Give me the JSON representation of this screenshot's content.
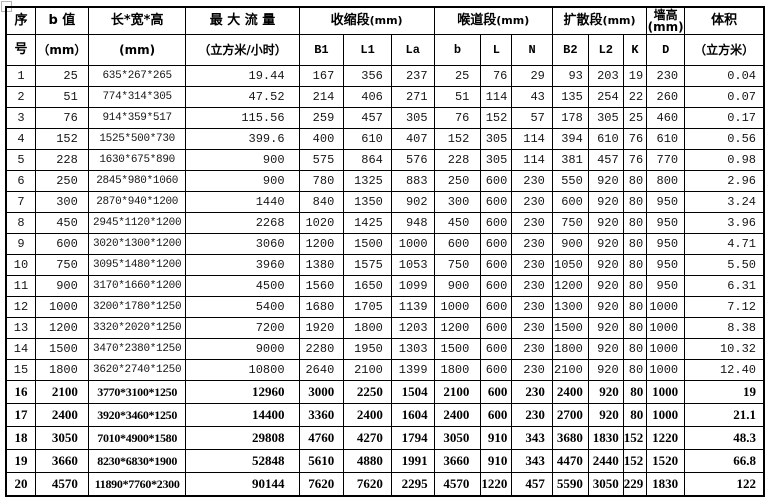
{
  "header": {
    "row1": {
      "serial_top": "序",
      "b_value": "b 值",
      "dimensions": "长*宽*高",
      "max_flow": "最 大 流 量",
      "contraction": "收缩段",
      "contraction_unit": "(mm)",
      "throat": "喉道段",
      "throat_unit": "(mm)",
      "diffusion": "扩散段",
      "diffusion_unit": "(mm)",
      "wall_height": "墙高",
      "wall_height_unit": "(mm)",
      "volume": "体积"
    },
    "row2": {
      "serial_bottom": "号",
      "b_value_unit": "（mm）",
      "dimensions_unit": "(mm)",
      "max_flow_unit": "（立方米/小时）",
      "cols": [
        "B1",
        "L1",
        "La",
        "b",
        "L",
        "N",
        "B2",
        "L2",
        "K",
        "D"
      ],
      "volume_unit": "（立方米）"
    }
  },
  "rows": [
    {
      "bold": false,
      "cells": [
        "1",
        "25",
        "635*267*265",
        "19.44",
        "167",
        "356",
        "237",
        "25",
        "76",
        "29",
        "93",
        "203",
        "19",
        "230",
        "0.04"
      ]
    },
    {
      "bold": false,
      "cells": [
        "2",
        "51",
        "774*314*305",
        "47.52",
        "214",
        "406",
        "271",
        "51",
        "114",
        "43",
        "135",
        "254",
        "22",
        "260",
        "0.07"
      ]
    },
    {
      "bold": false,
      "cells": [
        "3",
        "76",
        "914*359*517",
        "115.56",
        "259",
        "457",
        "305",
        "76",
        "152",
        "57",
        "178",
        "305",
        "25",
        "460",
        "0.17"
      ]
    },
    {
      "bold": false,
      "cells": [
        "4",
        "152",
        "1525*500*730",
        "399.6",
        "400",
        "610",
        "407",
        "152",
        "305",
        "114",
        "394",
        "610",
        "76",
        "610",
        "0.56"
      ]
    },
    {
      "bold": false,
      "cells": [
        "5",
        "228",
        "1630*675*890",
        "900",
        "575",
        "864",
        "576",
        "228",
        "305",
        "114",
        "381",
        "457",
        "76",
        "770",
        "0.98"
      ]
    },
    {
      "bold": false,
      "cells": [
        "6",
        "250",
        "2845*980*1060",
        "900",
        "780",
        "1325",
        "883",
        "250",
        "600",
        "230",
        "550",
        "920",
        "80",
        "800",
        "2.96"
      ]
    },
    {
      "bold": false,
      "cells": [
        "7",
        "300",
        "2870*940*1200",
        "1440",
        "840",
        "1350",
        "902",
        "300",
        "600",
        "230",
        "600",
        "920",
        "80",
        "950",
        "3.24"
      ]
    },
    {
      "bold": false,
      "cells": [
        "8",
        "450",
        "2945*1120*1200",
        "2268",
        "1020",
        "1425",
        "948",
        "450",
        "600",
        "230",
        "750",
        "920",
        "80",
        "950",
        "3.96"
      ]
    },
    {
      "bold": false,
      "cells": [
        "9",
        "600",
        "3020*1300*1200",
        "3060",
        "1200",
        "1500",
        "1000",
        "600",
        "600",
        "230",
        "900",
        "920",
        "80",
        "950",
        "4.71"
      ]
    },
    {
      "bold": false,
      "cells": [
        "10",
        "750",
        "3095*1480*1200",
        "3960",
        "1380",
        "1575",
        "1053",
        "750",
        "600",
        "230",
        "1050",
        "920",
        "80",
        "950",
        "5.50"
      ]
    },
    {
      "bold": false,
      "cells": [
        "11",
        "900",
        "3170*1660*1200",
        "4500",
        "1560",
        "1650",
        "1099",
        "900",
        "600",
        "230",
        "1200",
        "920",
        "80",
        "950",
        "6.31"
      ]
    },
    {
      "bold": false,
      "cells": [
        "12",
        "1000",
        "3200*1780*1250",
        "5400",
        "1680",
        "1705",
        "1139",
        "1000",
        "600",
        "230",
        "1300",
        "920",
        "80",
        "1000",
        "7.12"
      ]
    },
    {
      "bold": false,
      "cells": [
        "13",
        "1200",
        "3320*2020*1250",
        "7200",
        "1920",
        "1800",
        "1203",
        "1200",
        "600",
        "230",
        "1500",
        "920",
        "80",
        "1000",
        "8.38"
      ]
    },
    {
      "bold": false,
      "cells": [
        "14",
        "1500",
        "3470*2380*1250",
        "9000",
        "2280",
        "1950",
        "1303",
        "1500",
        "600",
        "230",
        "1800",
        "920",
        "80",
        "1000",
        "10.32"
      ]
    },
    {
      "bold": false,
      "cells": [
        "15",
        "1800",
        "3620*2740*1250",
        "10800",
        "2640",
        "2100",
        "1399",
        "1800",
        "600",
        "230",
        "2100",
        "920",
        "80",
        "1000",
        "12.40"
      ]
    },
    {
      "bold": true,
      "cells": [
        "16",
        "2100",
        "3770*3100*1250",
        "12960",
        "3000",
        "2250",
        "1504",
        "2100",
        "600",
        "230",
        "2400",
        "920",
        "80",
        "1000",
        "19"
      ]
    },
    {
      "bold": true,
      "cells": [
        "17",
        "2400",
        "3920*3460*1250",
        "14400",
        "3360",
        "2400",
        "1604",
        "2400",
        "600",
        "230",
        "2700",
        "920",
        "80",
        "1000",
        "21.1"
      ]
    },
    {
      "bold": true,
      "cells": [
        "18",
        "3050",
        "7010*4900*1580",
        "29808",
        "4760",
        "4270",
        "1794",
        "3050",
        "910",
        "343",
        "3680",
        "1830",
        "152",
        "1220",
        "48.3"
      ]
    },
    {
      "bold": true,
      "cells": [
        "19",
        "3660",
        "8230*6830*1900",
        "52848",
        "5610",
        "4880",
        "1991",
        "3660",
        "910",
        "343",
        "4470",
        "2440",
        "152",
        "1520",
        "66.8"
      ]
    },
    {
      "bold": true,
      "cells": [
        "20",
        "4570",
        "11890*7760*2300",
        "90144",
        "7620",
        "7620",
        "2295",
        "4570",
        "1220",
        "457",
        "5590",
        "3050",
        "229",
        "1830",
        "122"
      ]
    }
  ]
}
